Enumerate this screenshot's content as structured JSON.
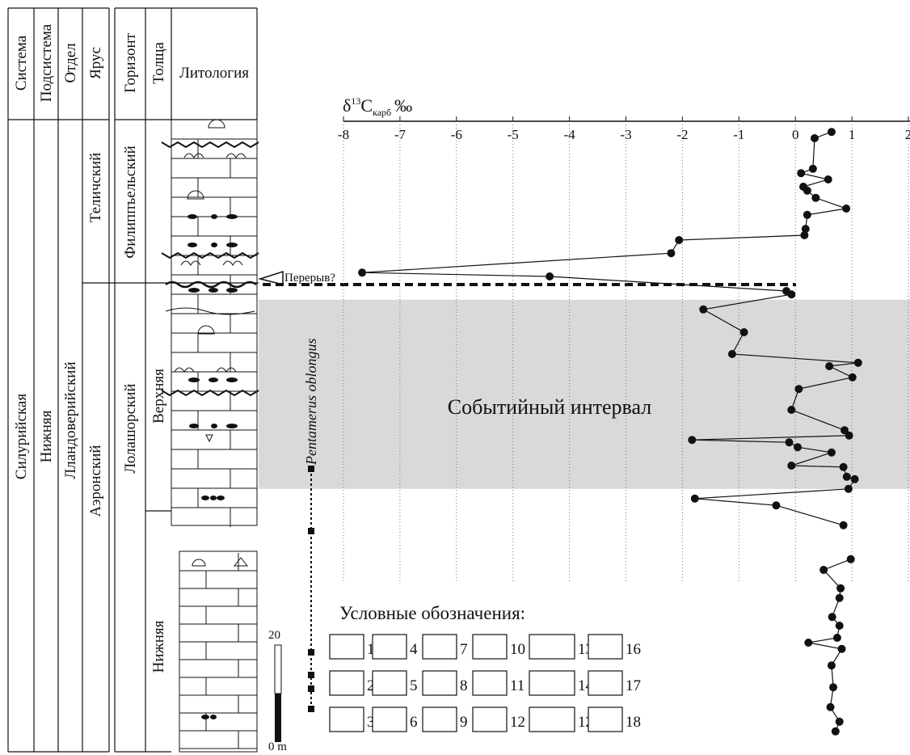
{
  "chart_data": {
    "type": "line",
    "title_parts": [
      "δ",
      "13",
      "C",
      "карб",
      "‰"
    ],
    "xlim": [
      -8,
      2
    ],
    "xticks": [
      -8,
      -7,
      -6,
      -5,
      -4,
      -3,
      -2,
      -1,
      0,
      1,
      2
    ],
    "grid": true,
    "color": "#111111",
    "values": [
      0.64,
      0.34,
      0.31,
      0.1,
      0.58,
      0.14,
      0.21,
      0.36,
      0.9,
      0.21,
      0.18,
      0.16,
      -2.06,
      -2.2,
      -7.67,
      -4.35,
      -0.16,
      -0.07,
      -1.63,
      -0.91,
      -1.12,
      1.11,
      0.6,
      1.01,
      0.06,
      -0.07,
      0.87,
      0.95,
      -1.83,
      -0.11,
      0.04,
      0.64,
      -0.07,
      0.85,
      0.91,
      1.05,
      0.94,
      -1.78,
      -0.34,
      0.85,
      null,
      0.98,
      0.5,
      0.8,
      0.78,
      0.65,
      0.78,
      0.74,
      0.23,
      0.82,
      0.64,
      0.67,
      0.62,
      0.78,
      0.71
    ],
    "y": [
      125.8,
      124.5,
      118.2,
      117.3,
      116,
      114.5,
      113.7,
      112.2,
      110,
      108.7,
      105.8,
      104.5,
      103.5,
      100.8,
      96.8,
      96,
      93,
      92.3,
      89.2,
      84.5,
      80,
      78.2,
      77.5,
      75.2,
      72.8,
      68.5,
      64.3,
      63.2,
      62.3,
      61.8,
      60.8,
      59.7,
      57,
      56.7,
      54.7,
      54.2,
      52.2,
      50.2,
      48.8,
      44.7,
      null,
      37.7,
      35.5,
      31.7,
      29.7,
      25.8,
      24,
      21.5,
      20.5,
      19.2,
      15.8,
      11.3,
      7.2,
      4.2,
      2.2
    ],
    "event_interval": {
      "label": "Событийный интервал",
      "range": [
        52.2,
        91.2
      ]
    },
    "hiatus_label": "Перерыв?",
    "fossil_label": "Pentamerus oblongus",
    "scale_bar": [
      {
        "value": 20,
        "label": "20"
      },
      {
        "value": 0,
        "label": "0 m"
      }
    ]
  },
  "header": [
    "Система",
    "Подсистема",
    "Отдел",
    "Ярус",
    "Горизонт",
    "Толща",
    "Литология"
  ],
  "units": {
    "system": "Силурийская",
    "subsystem": "Нижняя",
    "series": "Лландоверийский",
    "stages": [
      "Теличский",
      "Аэронский"
    ],
    "horizons": [
      "Филиппъельский",
      "Лолашорский"
    ],
    "members": [
      "Верхняя",
      "Нижняя"
    ]
  },
  "legend": {
    "title": "Условные обозначения:",
    "items": [
      "1",
      "4",
      "7",
      "10",
      "13",
      "16",
      "2",
      "5",
      "8",
      "11",
      "14",
      "17",
      "3",
      "6",
      "9",
      "12",
      "12",
      "18"
    ]
  }
}
